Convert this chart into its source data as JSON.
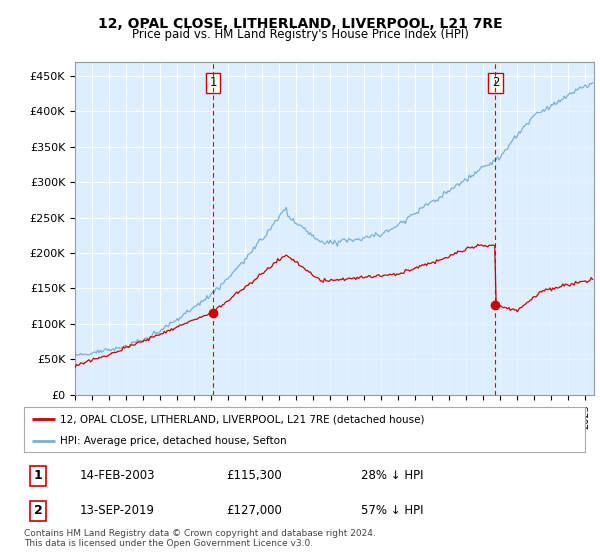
{
  "title": "12, OPAL CLOSE, LITHERLAND, LIVERPOOL, L21 7RE",
  "subtitle": "Price paid vs. HM Land Registry's House Price Index (HPI)",
  "ylabel_ticks": [
    "£0",
    "£50K",
    "£100K",
    "£150K",
    "£200K",
    "£250K",
    "£300K",
    "£350K",
    "£400K",
    "£450K"
  ],
  "ytick_values": [
    0,
    50000,
    100000,
    150000,
    200000,
    250000,
    300000,
    350000,
    400000,
    450000
  ],
  "ylim": [
    0,
    470000
  ],
  "xlim_start": 1995.0,
  "xlim_end": 2025.5,
  "red_line_color": "#cc0000",
  "blue_line_color": "#7ab0d4",
  "blue_fill_color": "#ddeeff",
  "dashed_color": "#cc0000",
  "transaction1_x": 2003.12,
  "transaction1_y": 115300,
  "transaction1_label": "1",
  "transaction2_x": 2019.71,
  "transaction2_y": 127000,
  "transaction2_label": "2",
  "legend_line1": "12, OPAL CLOSE, LITHERLAND, LIVERPOOL, L21 7RE (detached house)",
  "legend_line2": "HPI: Average price, detached house, Sefton",
  "table_row1": [
    "1",
    "14-FEB-2003",
    "£115,300",
    "28% ↓ HPI"
  ],
  "table_row2": [
    "2",
    "13-SEP-2019",
    "£127,000",
    "57% ↓ HPI"
  ],
  "footer": "Contains HM Land Registry data © Crown copyright and database right 2024.\nThis data is licensed under the Open Government Licence v3.0.",
  "background_color": "#ffffff",
  "plot_bg_color": "#ddeeff",
  "grid_color": "#ffffff"
}
